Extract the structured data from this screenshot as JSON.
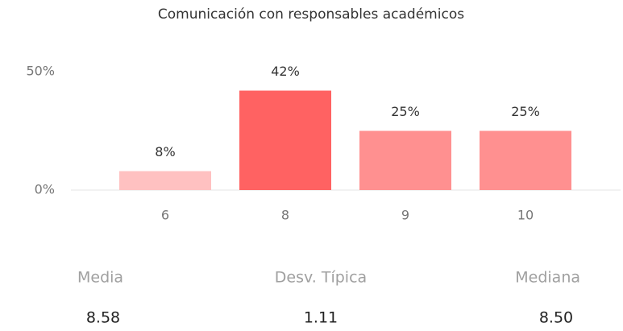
{
  "chart_data": {
    "type": "bar",
    "title": "Comunicación con responsables académicos",
    "categories": [
      "6",
      "8",
      "9",
      "10"
    ],
    "values": [
      8,
      42,
      25,
      25
    ],
    "value_labels": [
      "8%",
      "42%",
      "25%",
      "25%"
    ],
    "colors": [
      "#ffc1c1",
      "#ff6262",
      "#ff9090",
      "#ff9090"
    ],
    "ylim": [
      0,
      50
    ],
    "yticks": [
      {
        "value": 0,
        "label": "0%"
      },
      {
        "value": 50,
        "label": "50%"
      }
    ]
  },
  "stats": [
    {
      "label": "Media",
      "value": "8.58"
    },
    {
      "label": "Desv. Típica",
      "value": "1.11"
    },
    {
      "label": "Mediana",
      "value": "8.50"
    }
  ]
}
